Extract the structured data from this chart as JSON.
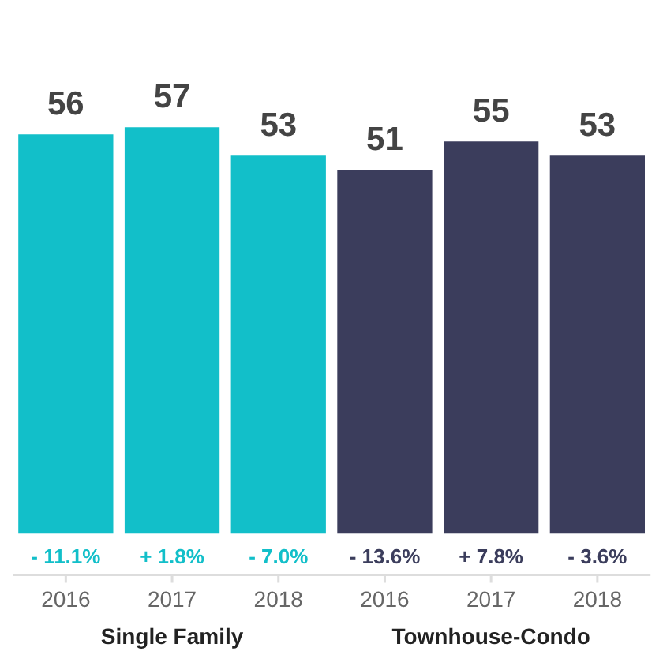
{
  "chart_data": {
    "type": "bar",
    "categories": [
      "2016",
      "2017",
      "2018",
      "2016",
      "2017",
      "2018"
    ],
    "series": [
      {
        "color": "#12bfc9",
        "values": [
          56,
          57,
          53,
          null,
          null,
          null
        ]
      },
      {
        "color": "#3b3d5c",
        "values": [
          null,
          null,
          null,
          51,
          55,
          53
        ]
      }
    ],
    "data_labels": true,
    "grid": false,
    "legend": false,
    "annotations": [
      "- 11.1%",
      "+ 1.8%",
      "- 7.0%",
      "- 13.6%",
      "+ 7.8%",
      "- 3.6%",
      "Single Family",
      "Townhouse-Condo"
    ]
  }
}
